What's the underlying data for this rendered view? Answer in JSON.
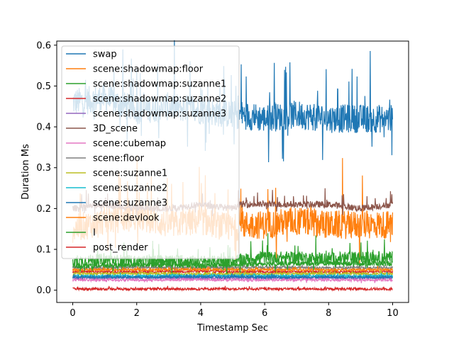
{
  "chart_data": {
    "type": "line",
    "xlabel": "Timestamp Sec",
    "ylabel": "Duration Ms",
    "xlim": [
      -0.5,
      10.5
    ],
    "ylim": [
      -0.03,
      0.61
    ],
    "xticks": [
      0,
      2,
      4,
      6,
      8,
      10
    ],
    "yticks": [
      0.0,
      0.1,
      0.2,
      0.3,
      0.4,
      0.5,
      0.6
    ],
    "xtick_labels": [
      "0",
      "2",
      "4",
      "6",
      "8",
      "10"
    ],
    "ytick_labels": [
      "0.0",
      "0.1",
      "0.2",
      "0.3",
      "0.4",
      "0.5",
      "0.6"
    ],
    "grid": false,
    "legend_position": "upper-left",
    "series": [
      {
        "name": "swap",
        "color": "#1f77b4",
        "x": [
          0,
          1,
          2,
          3,
          4,
          5,
          5.25,
          6,
          7,
          8,
          9,
          10
        ],
        "values": [
          0.46,
          0.47,
          0.44,
          0.45,
          0.44,
          0.43,
          0.43,
          0.42,
          0.43,
          0.42,
          0.42,
          0.42
        ]
      },
      {
        "name": "scene:shadowmap:floor",
        "color": "#ff7f0e",
        "x": [
          0,
          1,
          2,
          3,
          4,
          5,
          5.25,
          6,
          7,
          8,
          9,
          10
        ],
        "values": [
          0.15,
          0.17,
          0.18,
          0.16,
          0.17,
          0.15,
          0.16,
          0.16,
          0.17,
          0.16,
          0.16,
          0.16
        ]
      },
      {
        "name": "scene:shadowmap:suzanne1",
        "color": "#2ca02c",
        "x": [
          0,
          1,
          2,
          3,
          4,
          5,
          5.25,
          6,
          7,
          8,
          9,
          10
        ],
        "values": [
          0.07,
          0.075,
          0.07,
          0.072,
          0.07,
          0.07,
          0.075,
          0.08,
          0.08,
          0.078,
          0.08,
          0.08
        ]
      },
      {
        "name": "scene:shadowmap:suzanne2",
        "color": "#d62728",
        "x": [
          0,
          2,
          4,
          6,
          8,
          10
        ],
        "values": [
          0.045,
          0.045,
          0.046,
          0.045,
          0.045,
          0.045
        ]
      },
      {
        "name": "scene:shadowmap:suzanne3",
        "color": "#9467bd",
        "x": [
          0,
          2,
          4,
          6,
          8,
          10
        ],
        "values": [
          0.03,
          0.031,
          0.03,
          0.03,
          0.031,
          0.03
        ]
      },
      {
        "name": "3D_scene",
        "color": "#8c564b",
        "x": [
          0,
          1,
          2,
          3,
          4,
          5,
          5.25,
          6,
          7,
          8,
          9,
          10
        ],
        "values": [
          0.2,
          0.21,
          0.2,
          0.2,
          0.21,
          0.2,
          0.21,
          0.21,
          0.21,
          0.21,
          0.2,
          0.21
        ]
      },
      {
        "name": "scene:cubemap",
        "color": "#e377c2",
        "x": [
          0,
          2,
          4,
          6,
          8,
          10
        ],
        "values": [
          0.025,
          0.025,
          0.026,
          0.025,
          0.025,
          0.025
        ]
      },
      {
        "name": "scene:floor",
        "color": "#7f7f7f",
        "x": [
          0,
          2,
          4,
          6,
          8,
          10
        ],
        "values": [
          0.055,
          0.056,
          0.055,
          0.056,
          0.055,
          0.055
        ]
      },
      {
        "name": "scene:suzanne1",
        "color": "#bcbd22",
        "x": [
          0,
          2,
          4,
          6,
          8,
          10
        ],
        "values": [
          0.04,
          0.041,
          0.04,
          0.04,
          0.041,
          0.04
        ]
      },
      {
        "name": "scene:suzanne2",
        "color": "#17becf",
        "x": [
          0,
          2,
          4,
          6,
          8,
          10
        ],
        "values": [
          0.035,
          0.035,
          0.036,
          0.035,
          0.035,
          0.035
        ]
      },
      {
        "name": "scene:suzanne3",
        "color": "#1f77b4",
        "x": [
          0,
          2,
          4,
          6,
          8,
          10
        ],
        "values": [
          0.032,
          0.032,
          0.033,
          0.032,
          0.032,
          0.032
        ]
      },
      {
        "name": "scene:devlook",
        "color": "#ff7f0e",
        "x": [
          0,
          2,
          4,
          6,
          8,
          10
        ],
        "values": [
          0.05,
          0.05,
          0.051,
          0.05,
          0.05,
          0.05
        ]
      },
      {
        "name": "I",
        "color": "#2ca02c",
        "x": [
          0,
          2,
          4,
          6,
          8,
          10
        ],
        "values": [
          0.06,
          0.062,
          0.06,
          0.065,
          0.066,
          0.065
        ]
      },
      {
        "name": "post_render",
        "color": "#d62728",
        "x": [
          0,
          2,
          4,
          6,
          8,
          10
        ],
        "values": [
          0.003,
          0.003,
          0.003,
          0.003,
          0.003,
          0.003
        ]
      }
    ]
  }
}
